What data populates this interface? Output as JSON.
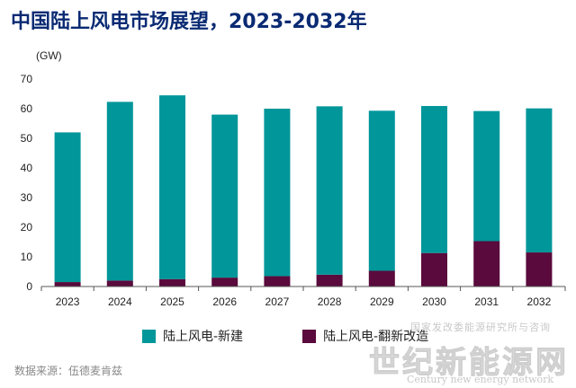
{
  "chart_data": {
    "type": "bar",
    "stacked": true,
    "title": "中国陆上风电市场展望，2023-2032年",
    "ylabel": "(GW)",
    "xlabel": "",
    "ylim": [
      0,
      70
    ],
    "yticks": [
      0,
      10,
      20,
      30,
      40,
      50,
      60,
      70
    ],
    "grid": false,
    "legend_position": "bottom",
    "categories": [
      "2023",
      "2024",
      "2025",
      "2026",
      "2027",
      "2028",
      "2029",
      "2030",
      "2031",
      "2032"
    ],
    "series": [
      {
        "name": "陆上风电-翻新改造",
        "color": "#5a0a3c",
        "values": [
          1.5,
          2,
          2.5,
          3,
          3.5,
          4,
          5.3,
          11.3,
          15.3,
          11.5
        ]
      },
      {
        "name": "陆上风电-新建",
        "color": "#00969a",
        "values": [
          50.5,
          60.3,
          62,
          55,
          56.5,
          56.8,
          54,
          49.6,
          43.9,
          48.6
        ]
      }
    ]
  },
  "source": "数据来源：伍德麦肯兹",
  "watermark": {
    "line1": "国家发改委能源研究所与咨询",
    "line2": "世纪新能源网",
    "line3": "Century new energy network"
  }
}
